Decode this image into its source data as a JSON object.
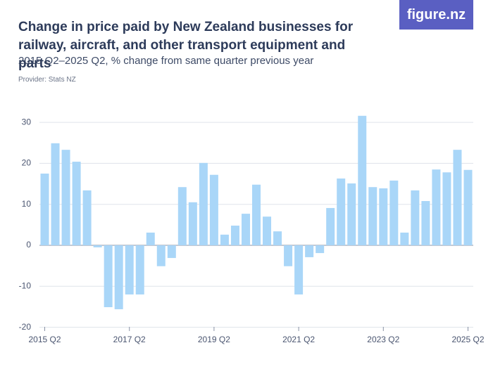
{
  "chart_data": {
    "type": "bar",
    "title": "Change in price paid by New Zealand businesses for railway, aircraft, and other transport equipment and parts",
    "subtitle": "2015 Q2–2025 Q2, % change from same quarter previous year",
    "source": "Provider: Stats NZ",
    "logo": "figure.nz",
    "categories": [
      "2015 Q2",
      null,
      null,
      null,
      null,
      null,
      null,
      null,
      "2017 Q2",
      null,
      null,
      null,
      null,
      null,
      null,
      null,
      "2019 Q2",
      null,
      null,
      null,
      null,
      null,
      null,
      null,
      "2021 Q2",
      null,
      null,
      null,
      null,
      null,
      null,
      null,
      "2023 Q2",
      null,
      null,
      null,
      null,
      null,
      null,
      null,
      "2025 Q2"
    ],
    "values": [
      17.5,
      24.9,
      23.3,
      20.4,
      13.4,
      -0.5,
      -15.1,
      -15.6,
      -12.0,
      -12.0,
      3.1,
      -5.1,
      -3.1,
      14.2,
      10.5,
      20.1,
      17.2,
      2.6,
      4.8,
      7.7,
      14.8,
      7.0,
      3.4,
      -5.1,
      -12.0,
      -2.9,
      -1.9,
      9.1,
      16.3,
      15.1,
      31.6,
      14.2,
      13.9,
      15.8,
      3.1,
      13.4,
      10.8,
      18.5,
      17.8,
      23.3,
      18.4
    ],
    "color": "#a9d6f8",
    "ylim": [
      -20,
      33
    ],
    "yticks": [
      -20,
      -10,
      0,
      10,
      20,
      30
    ],
    "grid": true
  }
}
